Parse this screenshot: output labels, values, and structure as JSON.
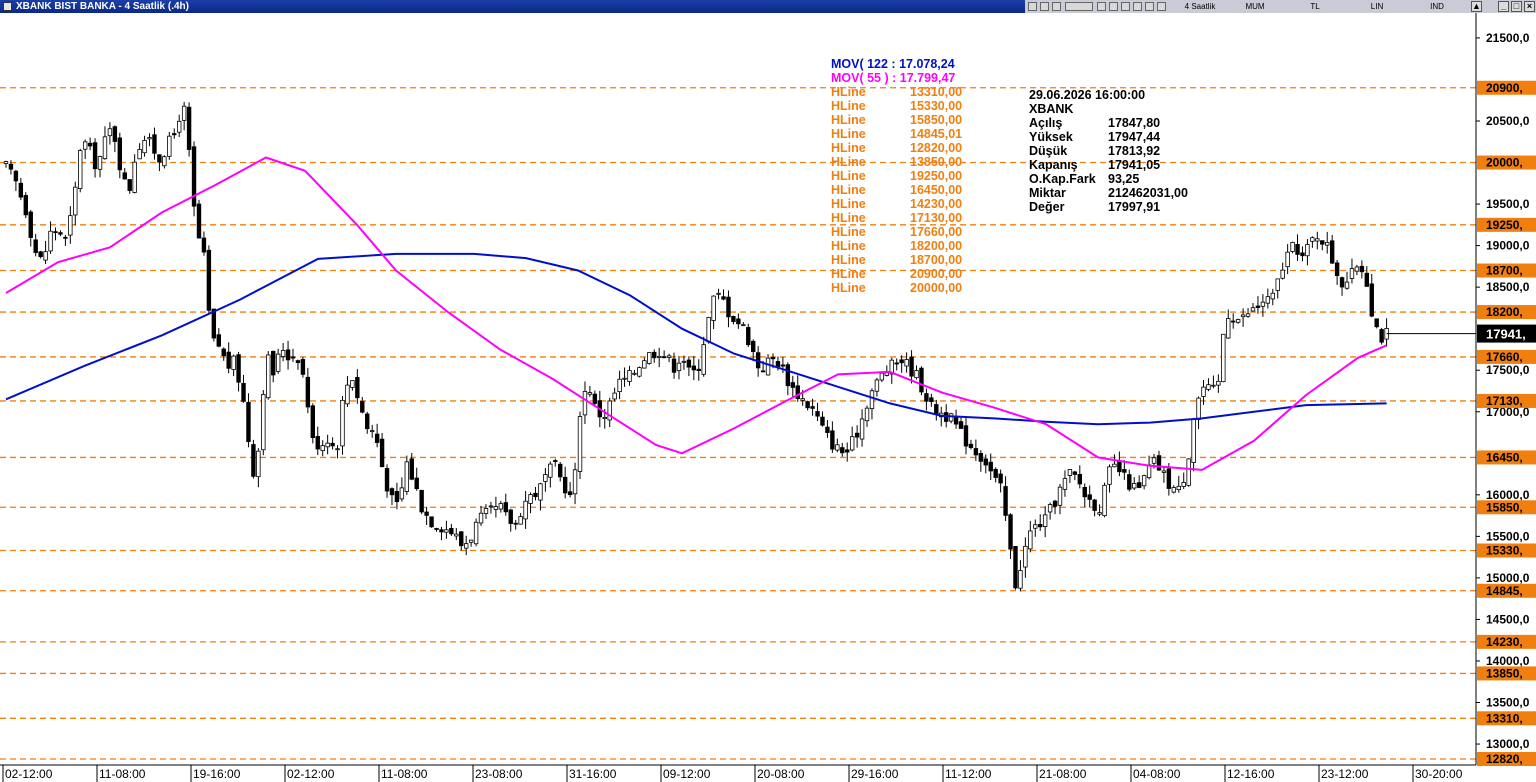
{
  "window": {
    "title": "XBANK BIST BANKA - 4 Saatlik (.4h)",
    "toolbar": {
      "period": "4 Saatlik",
      "chart_style": "MUM",
      "currency": "TL",
      "scale": "LIN",
      "indicators": "IND"
    }
  },
  "colors": {
    "ma122": "#0010c8",
    "ma55": "#ff00ff",
    "hline": "#f07f10",
    "candle_up": "#ffffff",
    "candle_down": "#000000"
  },
  "legend": {
    "mov122": "MOV( 122 : 17.078,24",
    "mov55": "MOV( 55 ) : 17.799,47",
    "hline_label": "HLine",
    "hline_values": [
      "13310,00",
      "15330,00",
      "15850,00",
      "14845,01",
      "12820,00",
      "13850,00",
      "19250,00",
      "16450,00",
      "14230,00",
      "17130,00",
      "17660,00",
      "18200,00",
      "18700,00",
      "20900,00",
      "20000,00"
    ]
  },
  "info": {
    "datetime": "29.06.2026  16:00:00",
    "symbol": "XBANK",
    "rows": [
      {
        "label": "Açılış",
        "value": "17847,80"
      },
      {
        "label": "Yüksek",
        "value": "17947,44"
      },
      {
        "label": "Düşük",
        "value": "17813,92"
      },
      {
        "label": "Kapanış",
        "value": "17941,05"
      },
      {
        "label": "O.Kap.Fark",
        "value": "93,25"
      },
      {
        "label": "Miktar",
        "value": "212462031,00"
      },
      {
        "label": "Değer",
        "value": "17997,91"
      }
    ]
  },
  "chart_data": {
    "type": "candlestick",
    "ylim": [
      12820,
      21800
    ],
    "y_ticks": [
      {
        "v": 21500,
        "label": "21500,0"
      },
      {
        "v": 20500,
        "label": "20500,0"
      },
      {
        "v": 19500,
        "label": "19500,0"
      },
      {
        "v": 19000,
        "label": "19000,0"
      },
      {
        "v": 18500,
        "label": "18500,0"
      },
      {
        "v": 17500,
        "label": "17500,0"
      },
      {
        "v": 17000,
        "label": "17000,0"
      },
      {
        "v": 16000,
        "label": "16000,0"
      },
      {
        "v": 15500,
        "label": "15500,0"
      },
      {
        "v": 15000,
        "label": "15000,0"
      },
      {
        "v": 14500,
        "label": "14500,0"
      },
      {
        "v": 14000,
        "label": "14000,0"
      },
      {
        "v": 13500,
        "label": "13500,0"
      },
      {
        "v": 13000,
        "label": "13000,0"
      }
    ],
    "hlines": [
      {
        "v": 20900,
        "label": "20900,"
      },
      {
        "v": 20000,
        "label": "20000,"
      },
      {
        "v": 19250,
        "label": "19250,"
      },
      {
        "v": 18700,
        "label": "18700,"
      },
      {
        "v": 18200,
        "label": "18200,"
      },
      {
        "v": 17660,
        "label": "17660,"
      },
      {
        "v": 17130,
        "label": "17130,"
      },
      {
        "v": 16450,
        "label": "16450,"
      },
      {
        "v": 15850,
        "label": "15850,"
      },
      {
        "v": 15330,
        "label": "15330,"
      },
      {
        "v": 14845,
        "label": "14845,"
      },
      {
        "v": 14230,
        "label": "14230,"
      },
      {
        "v": 13850,
        "label": "13850,"
      },
      {
        "v": 13310,
        "label": "13310,"
      },
      {
        "v": 12820,
        "label": "12820,"
      }
    ],
    "last_price": {
      "v": 17941,
      "label": "17941,"
    },
    "x_ticks": [
      "02-12:00",
      "11-08:00",
      "19-16:00",
      "02-12:00",
      "11-08:00",
      "23-08:00",
      "31-16:00",
      "09-12:00",
      "20-08:00",
      "29-16:00",
      "11-12:00",
      "21-08:00",
      "04-08:00",
      "12-16:00",
      "23-12:00",
      "30-20:00"
    ],
    "bars_count": 280,
    "close_path": [
      [
        0,
        19950
      ],
      [
        8,
        19750
      ],
      [
        16,
        19400
      ],
      [
        22,
        18950
      ],
      [
        28,
        18800
      ],
      [
        34,
        19150
      ],
      [
        40,
        19200
      ],
      [
        46,
        19050
      ],
      [
        52,
        19500
      ],
      [
        58,
        20300
      ],
      [
        64,
        20150
      ],
      [
        70,
        19950
      ],
      [
        76,
        20250
      ],
      [
        82,
        20450
      ],
      [
        88,
        19950
      ],
      [
        94,
        19600
      ],
      [
        100,
        20150
      ],
      [
        106,
        20300
      ],
      [
        112,
        20200
      ],
      [
        118,
        20050
      ],
      [
        124,
        20200
      ],
      [
        130,
        20350
      ],
      [
        136,
        20750
      ],
      [
        140,
        20250
      ],
      [
        146,
        19200
      ],
      [
        152,
        18900
      ],
      [
        158,
        17850
      ],
      [
        164,
        17800
      ],
      [
        170,
        17550
      ],
      [
        176,
        17600
      ],
      [
        182,
        17200
      ],
      [
        188,
        16500
      ],
      [
        192,
        16150
      ],
      [
        196,
        16900
      ],
      [
        200,
        17700
      ],
      [
        206,
        17450
      ],
      [
        212,
        17800
      ],
      [
        218,
        17650
      ],
      [
        224,
        17700
      ],
      [
        230,
        17350
      ],
      [
        236,
        16650
      ],
      [
        242,
        16600
      ],
      [
        248,
        16700
      ],
      [
        254,
        16500
      ],
      [
        260,
        17250
      ],
      [
        266,
        17450
      ],
      [
        272,
        17100
      ],
      [
        278,
        16800
      ],
      [
        284,
        16750
      ],
      [
        290,
        16300
      ],
      [
        296,
        15950
      ],
      [
        302,
        15850
      ],
      [
        308,
        16400
      ],
      [
        314,
        16150
      ],
      [
        320,
        15850
      ],
      [
        326,
        15700
      ],
      [
        332,
        15650
      ],
      [
        338,
        15600
      ],
      [
        344,
        15550
      ],
      [
        350,
        15400
      ],
      [
        356,
        15450
      ],
      [
        362,
        15650
      ],
      [
        368,
        15750
      ],
      [
        374,
        15800
      ],
      [
        380,
        15850
      ],
      [
        386,
        15700
      ],
      [
        392,
        15650
      ],
      [
        398,
        15900
      ],
      [
        404,
        16000
      ],
      [
        410,
        16050
      ],
      [
        416,
        16250
      ],
      [
        422,
        16350
      ],
      [
        428,
        16150
      ],
      [
        432,
        16050
      ],
      [
        436,
        15900
      ],
      [
        442,
        17100
      ],
      [
        448,
        17350
      ],
      [
        454,
        17000
      ],
      [
        460,
        16950
      ],
      [
        466,
        17150
      ],
      [
        472,
        17350
      ],
      [
        478,
        17400
      ],
      [
        484,
        17500
      ],
      [
        490,
        17650
      ],
      [
        496,
        17700
      ],
      [
        502,
        17750
      ],
      [
        508,
        17650
      ],
      [
        514,
        17550
      ],
      [
        520,
        17700
      ],
      [
        526,
        17450
      ],
      [
        532,
        17500
      ],
      [
        538,
        17950
      ],
      [
        544,
        18350
      ],
      [
        550,
        18400
      ],
      [
        556,
        18200
      ],
      [
        562,
        18100
      ],
      [
        568,
        18000
      ],
      [
        574,
        17750
      ],
      [
        580,
        17500
      ],
      [
        586,
        17600
      ],
      [
        592,
        17650
      ],
      [
        598,
        17500
      ],
      [
        604,
        17300
      ],
      [
        610,
        17200
      ],
      [
        616,
        17100
      ],
      [
        622,
        17000
      ],
      [
        628,
        16800
      ],
      [
        634,
        16650
      ],
      [
        640,
        16550
      ],
      [
        646,
        16500
      ],
      [
        652,
        16650
      ],
      [
        658,
        16900
      ],
      [
        664,
        17200
      ],
      [
        670,
        17350
      ],
      [
        676,
        17500
      ],
      [
        682,
        17550
      ],
      [
        688,
        17650
      ],
      [
        694,
        17550
      ],
      [
        700,
        17450
      ],
      [
        706,
        17250
      ],
      [
        712,
        17050
      ],
      [
        718,
        17000
      ],
      [
        724,
        16950
      ],
      [
        730,
        16850
      ],
      [
        736,
        16700
      ],
      [
        742,
        16600
      ],
      [
        748,
        16500
      ],
      [
        754,
        16400
      ],
      [
        760,
        16200
      ],
      [
        766,
        16050
      ],
      [
        772,
        15400
      ],
      [
        776,
        14900
      ],
      [
        782,
        15250
      ],
      [
        788,
        15550
      ],
      [
        794,
        15650
      ],
      [
        800,
        15700
      ],
      [
        806,
        15900
      ],
      [
        812,
        16100
      ],
      [
        818,
        16250
      ],
      [
        824,
        16200
      ],
      [
        830,
        16000
      ],
      [
        836,
        15900
      ],
      [
        842,
        15850
      ],
      [
        848,
        16250
      ],
      [
        854,
        16350
      ],
      [
        860,
        16200
      ],
      [
        866,
        16100
      ],
      [
        872,
        16050
      ],
      [
        878,
        16300
      ],
      [
        884,
        16400
      ],
      [
        890,
        16250
      ],
      [
        896,
        16100
      ],
      [
        902,
        16050
      ],
      [
        908,
        16300
      ],
      [
        914,
        17000
      ],
      [
        920,
        17300
      ],
      [
        926,
        17250
      ],
      [
        932,
        17250
      ],
      [
        938,
        18200
      ],
      [
        944,
        18150
      ],
      [
        950,
        18100
      ],
      [
        956,
        18200
      ],
      [
        962,
        18250
      ],
      [
        968,
        18350
      ],
      [
        974,
        18350
      ],
      [
        980,
        18650
      ],
      [
        986,
        18900
      ],
      [
        992,
        19000
      ],
      [
        998,
        18850
      ],
      [
        1004,
        19050
      ],
      [
        1010,
        19150
      ],
      [
        1016,
        19000
      ],
      [
        1022,
        18750
      ],
      [
        1028,
        18550
      ],
      [
        1034,
        18600
      ],
      [
        1040,
        18800
      ],
      [
        1046,
        18650
      ],
      [
        1052,
        18100
      ],
      [
        1058,
        17900
      ],
      [
        1062,
        17941
      ]
    ],
    "series": [
      {
        "name": "MOV 122",
        "values": [
          [
            0,
            17150
          ],
          [
            60,
            17550
          ],
          [
            120,
            17920
          ],
          [
            180,
            18350
          ],
          [
            240,
            18840
          ],
          [
            300,
            18900
          ],
          [
            360,
            18900
          ],
          [
            400,
            18850
          ],
          [
            440,
            18700
          ],
          [
            480,
            18400
          ],
          [
            520,
            18000
          ],
          [
            560,
            17700
          ],
          [
            600,
            17500
          ],
          [
            640,
            17300
          ],
          [
            680,
            17100
          ],
          [
            720,
            16950
          ],
          [
            760,
            16920
          ],
          [
            800,
            16880
          ],
          [
            840,
            16850
          ],
          [
            880,
            16870
          ],
          [
            920,
            16920
          ],
          [
            960,
            17000
          ],
          [
            1000,
            17080
          ],
          [
            1062,
            17100
          ]
        ]
      },
      {
        "name": "MOV 55",
        "values": [
          [
            0,
            18430
          ],
          [
            40,
            18800
          ],
          [
            80,
            18980
          ],
          [
            120,
            19400
          ],
          [
            160,
            19720
          ],
          [
            200,
            20060
          ],
          [
            230,
            19900
          ],
          [
            270,
            19250
          ],
          [
            300,
            18700
          ],
          [
            340,
            18200
          ],
          [
            380,
            17750
          ],
          [
            420,
            17400
          ],
          [
            460,
            17000
          ],
          [
            500,
            16600
          ],
          [
            520,
            16500
          ],
          [
            560,
            16800
          ],
          [
            600,
            17130
          ],
          [
            640,
            17450
          ],
          [
            680,
            17480
          ],
          [
            720,
            17230
          ],
          [
            760,
            17050
          ],
          [
            800,
            16850
          ],
          [
            840,
            16450
          ],
          [
            880,
            16350
          ],
          [
            920,
            16300
          ],
          [
            960,
            16650
          ],
          [
            1000,
            17200
          ],
          [
            1040,
            17650
          ],
          [
            1062,
            17800
          ]
        ]
      }
    ]
  }
}
